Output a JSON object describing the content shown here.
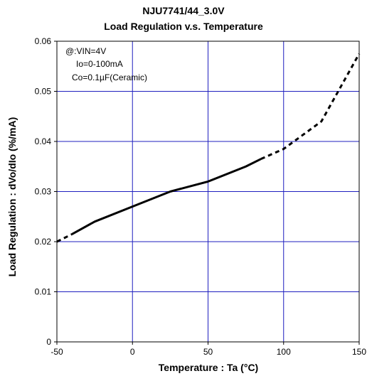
{
  "chart_data": {
    "type": "line",
    "title": "NJU7741/44_3.0V",
    "subtitle": "Load Regulation v.s. Temperature",
    "xlabel": "Temperature : Ta (°C)",
    "ylabel": "Load Regulation : dVo/dIo (%/mA)",
    "xlim": [
      -50,
      150
    ],
    "ylim": [
      0,
      0.06
    ],
    "x_ticks": [
      -50,
      0,
      50,
      100,
      150
    ],
    "y_ticks": [
      0,
      0.01,
      0.02,
      0.03,
      0.04,
      0.05,
      0.06
    ],
    "x_tick_labels": [
      "-50",
      "0",
      "50",
      "100",
      "150"
    ],
    "y_tick_labels": [
      "0",
      "0.01",
      "0.02",
      "0.03",
      "0.04",
      "0.05",
      "0.06"
    ],
    "grid": true,
    "grid_color": "#1f1fbf",
    "line_color": "#000000",
    "annotations": [
      "@:VIN=4V",
      "Io=0-100mA",
      "Co=0.1µF(Ceramic)"
    ],
    "series": [
      {
        "style": "solid",
        "points": [
          {
            "x": -40,
            "y": 0.0215
          },
          {
            "x": -25,
            "y": 0.024
          },
          {
            "x": 0,
            "y": 0.027
          },
          {
            "x": 25,
            "y": 0.03
          },
          {
            "x": 50,
            "y": 0.032
          },
          {
            "x": 75,
            "y": 0.035
          },
          {
            "x": 85,
            "y": 0.0365
          }
        ]
      },
      {
        "style": "dashed",
        "points": [
          {
            "x": -50,
            "y": 0.02
          },
          {
            "x": -40,
            "y": 0.0215
          }
        ]
      },
      {
        "style": "dashed",
        "points": [
          {
            "x": 85,
            "y": 0.0365
          },
          {
            "x": 100,
            "y": 0.0385
          },
          {
            "x": 125,
            "y": 0.044
          },
          {
            "x": 150,
            "y": 0.0575
          }
        ]
      }
    ]
  }
}
